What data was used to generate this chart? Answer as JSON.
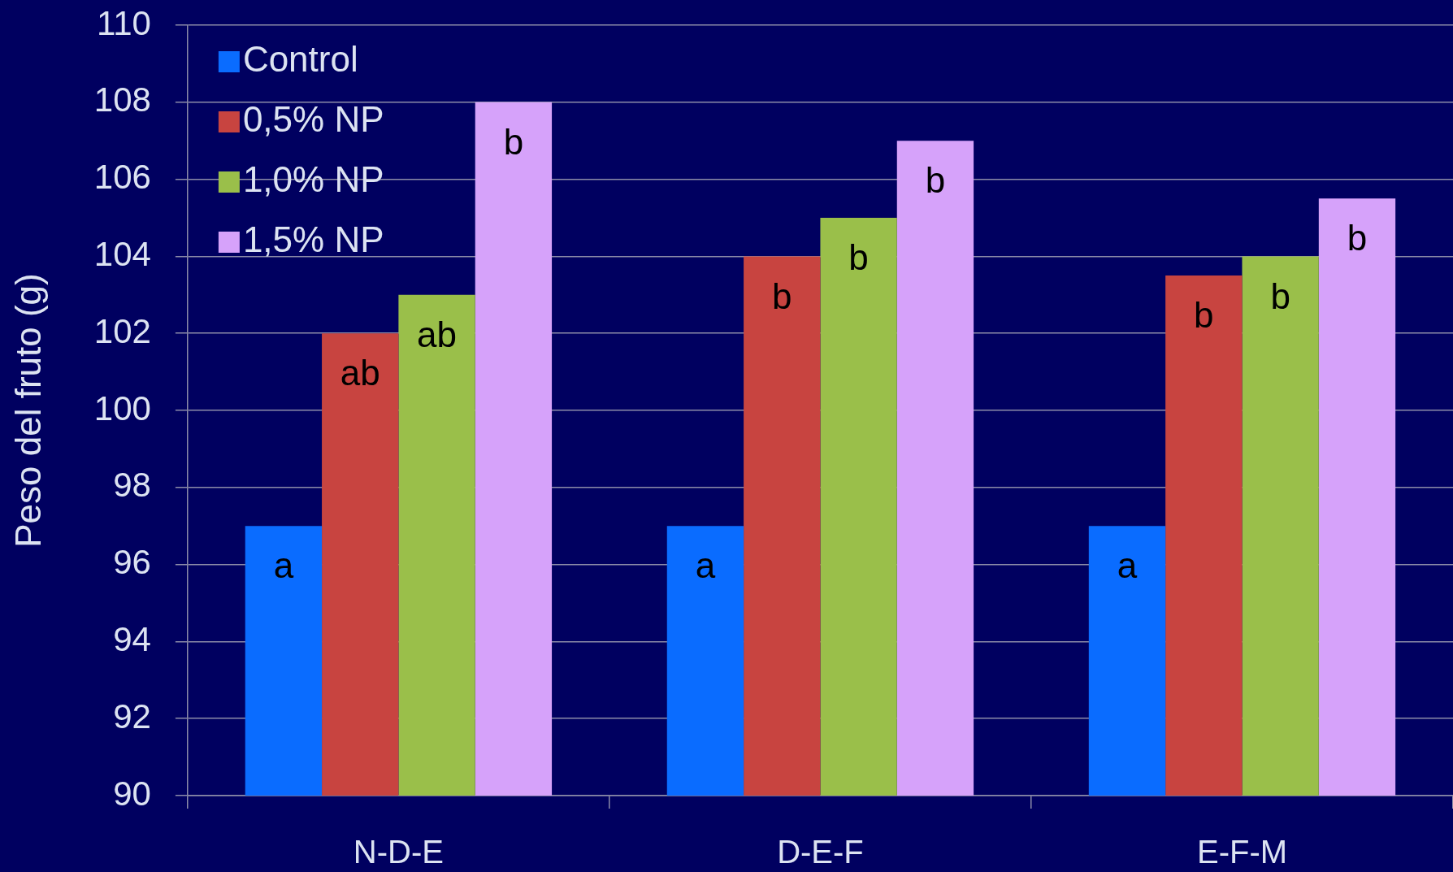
{
  "chart_data": {
    "type": "bar",
    "ylabel": "Peso del fruto (g)",
    "categories": [
      "N-D-E",
      "D-E-F",
      "E-F-M"
    ],
    "series": [
      {
        "name": "Control",
        "color": "#0a6cff",
        "values": [
          97,
          97,
          97
        ],
        "value_labels": [
          "a",
          "a",
          "a"
        ]
      },
      {
        "name": "0,5% NP",
        "color": "#c84440",
        "values": [
          102,
          104,
          103.5
        ],
        "value_labels": [
          "ab",
          "b",
          "b"
        ]
      },
      {
        "name": "1,0% NP",
        "color": "#9abf4a",
        "values": [
          103,
          105,
          104
        ],
        "value_labels": [
          "ab",
          "b",
          "b"
        ]
      },
      {
        "name": "1,5% NP",
        "color": "#d6a2fa",
        "values": [
          108,
          107,
          105.5
        ],
        "value_labels": [
          "b",
          "b",
          "b"
        ]
      }
    ],
    "ylim": [
      90,
      110
    ],
    "yticks": [
      90,
      92,
      94,
      96,
      98,
      100,
      102,
      104,
      106,
      108,
      110
    ],
    "grid": "y",
    "legend": "top left"
  }
}
